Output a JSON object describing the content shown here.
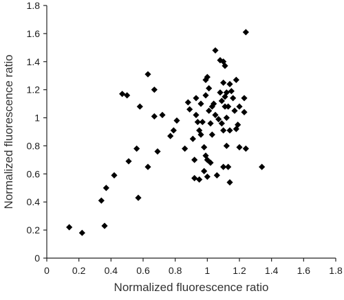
{
  "chart_data": {
    "type": "scatter",
    "title": "",
    "xlabel": "Normalized fluorescence ratio",
    "ylabel": "Normalized fluorescence ratio",
    "xlim": [
      0,
      1.8
    ],
    "ylim": [
      0,
      1.8
    ],
    "x_ticks": [
      0,
      0.2,
      0.4,
      0.6,
      0.8,
      1,
      1.2,
      1.4,
      1.6,
      1.8
    ],
    "y_ticks": [
      0,
      0.2,
      0.4,
      0.6,
      0.8,
      1,
      1.2,
      1.4,
      1.6,
      1.8
    ],
    "x_tick_labels": [
      "0",
      "0.2",
      "0.4",
      "0.6",
      "0.8",
      "1",
      "1.2",
      "1.4",
      "1.6",
      "1.8"
    ],
    "y_tick_labels": [
      "0",
      "0.2",
      "0.4",
      "0.6",
      "0.8",
      "1",
      "1.2",
      "1.4",
      "1.6",
      "1.8"
    ],
    "grid": false,
    "marker": "diamond",
    "marker_color": "#000000",
    "series": [
      {
        "points": [
          [
            0.14,
            0.22
          ],
          [
            0.22,
            0.18
          ],
          [
            0.34,
            0.41
          ],
          [
            0.36,
            0.23
          ],
          [
            0.37,
            0.5
          ],
          [
            0.42,
            0.59
          ],
          [
            0.47,
            1.17
          ],
          [
            0.5,
            1.16
          ],
          [
            0.51,
            0.69
          ],
          [
            0.56,
            0.78
          ],
          [
            0.57,
            0.43
          ],
          [
            0.58,
            1.08
          ],
          [
            0.63,
            1.31
          ],
          [
            0.63,
            0.65
          ],
          [
            0.67,
            1.2
          ],
          [
            0.67,
            1.01
          ],
          [
            0.69,
            0.76
          ],
          [
            0.72,
            1.02
          ],
          [
            0.77,
            0.87
          ],
          [
            0.79,
            0.91
          ],
          [
            0.81,
            0.98
          ],
          [
            0.86,
            0.78
          ],
          [
            0.88,
            1.11
          ],
          [
            0.89,
            1.06
          ],
          [
            0.91,
            0.85
          ],
          [
            0.92,
            0.7
          ],
          [
            0.92,
            0.57
          ],
          [
            0.93,
            1.14
          ],
          [
            0.93,
            1.02
          ],
          [
            0.94,
            0.97
          ],
          [
            0.95,
            0.56
          ],
          [
            0.95,
            0.91
          ],
          [
            0.96,
            0.88
          ],
          [
            0.96,
            1.1
          ],
          [
            0.97,
            0.97
          ],
          [
            0.98,
            0.62
          ],
          [
            0.98,
            0.79
          ],
          [
            0.99,
            1.27
          ],
          [
            0.99,
            1.16
          ],
          [
            0.99,
            0.73
          ],
          [
            1.0,
            1.29
          ],
          [
            1.0,
            0.7
          ],
          [
            1.0,
            0.58
          ],
          [
            1.01,
            1.21
          ],
          [
            1.01,
            1.05
          ],
          [
            1.02,
            0.96
          ],
          [
            1.02,
            0.68
          ],
          [
            1.03,
            1.08
          ],
          [
            1.03,
            0.88
          ],
          [
            1.04,
            1.1
          ],
          [
            1.05,
            1.48
          ],
          [
            1.05,
            1.02
          ],
          [
            1.06,
            0.59
          ],
          [
            1.07,
            0.99
          ],
          [
            1.08,
            1.41
          ],
          [
            1.08,
            1.18
          ],
          [
            1.09,
            1.12
          ],
          [
            1.09,
            0.96
          ],
          [
            1.1,
            1.4
          ],
          [
            1.1,
            1.25
          ],
          [
            1.1,
            0.91
          ],
          [
            1.1,
            0.65
          ],
          [
            1.11,
            1.37
          ],
          [
            1.11,
            1.15
          ],
          [
            1.11,
            1.08
          ],
          [
            1.12,
            1.18
          ],
          [
            1.12,
            1.0
          ],
          [
            1.12,
            0.8
          ],
          [
            1.13,
            1.08
          ],
          [
            1.13,
            0.65
          ],
          [
            1.14,
            1.24
          ],
          [
            1.14,
            0.91
          ],
          [
            1.14,
            0.54
          ],
          [
            1.15,
            1.19
          ],
          [
            1.16,
            1.14
          ],
          [
            1.17,
            1.05
          ],
          [
            1.18,
            1.27
          ],
          [
            1.18,
            0.92
          ],
          [
            1.19,
            0.95
          ],
          [
            1.2,
            1.08
          ],
          [
            1.2,
            0.79
          ],
          [
            1.23,
            1.14
          ],
          [
            1.23,
            1.04
          ],
          [
            1.24,
            0.78
          ],
          [
            1.24,
            1.61
          ],
          [
            1.34,
            0.65
          ]
        ]
      }
    ]
  }
}
